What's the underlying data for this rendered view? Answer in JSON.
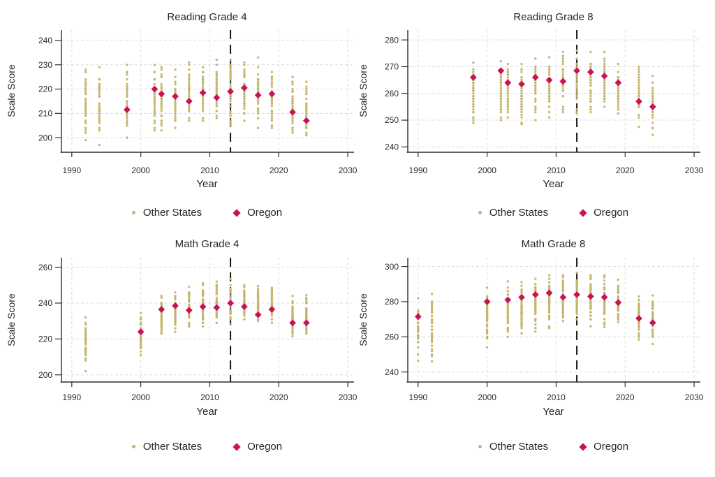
{
  "legend": {
    "other_states": "Other States",
    "oregon": "Oregon"
  },
  "colors": {
    "other_states": "#c4b56c",
    "oregon": "#cb1256",
    "reference_line": "#111111",
    "grid": "#dcdcdc",
    "axis": "#2e2e2e",
    "text": "#2b2b2b"
  },
  "chart_data": [
    {
      "type": "scatter",
      "title": "Reading Grade 4",
      "xlabel": "Year",
      "ylabel": "Scale Score",
      "xlim": [
        1988.5,
        2030.7
      ],
      "xticks": [
        1990,
        2000,
        2010,
        2020,
        2030
      ],
      "ylim": [
        194,
        244.3
      ],
      "yticks": [
        200,
        210,
        220,
        230,
        240
      ],
      "reference_line_x": 2013,
      "grid": true,
      "legend_position": "bottom",
      "oregon": {
        "years": [
          1998,
          2002,
          2003,
          2005,
          2007,
          2009,
          2011,
          2013,
          2015,
          2017,
          2019,
          2022,
          2024
        ],
        "values": [
          211.5,
          220,
          218,
          217,
          215,
          218.5,
          216.5,
          219,
          220.5,
          217.5,
          218,
          210.5,
          207
        ]
      },
      "other_states": {
        "years": [
          1992,
          1994,
          1998,
          2002,
          2003,
          2005,
          2007,
          2009,
          2011,
          2013,
          2015,
          2017,
          2019,
          2022,
          2024
        ],
        "min": [
          199,
          197,
          200,
          203,
          203,
          204,
          207,
          207,
          208,
          205,
          207,
          204,
          204,
          202,
          201
        ],
        "max": [
          228,
          229,
          230,
          230,
          229,
          228,
          231,
          229,
          232,
          232,
          231,
          233,
          227,
          225,
          223
        ]
      }
    },
    {
      "type": "scatter",
      "title": "Reading Grade 8",
      "xlabel": "Year",
      "ylabel": "Scale Score",
      "xlim": [
        1988.5,
        2030.7
      ],
      "xticks": [
        1990,
        2000,
        2010,
        2020,
        2030
      ],
      "ylim": [
        238,
        283.7
      ],
      "yticks": [
        240,
        250,
        260,
        270,
        280
      ],
      "reference_line_x": 2013,
      "grid": true,
      "legend_position": "bottom",
      "oregon": {
        "years": [
          1998,
          2002,
          2003,
          2005,
          2007,
          2009,
          2011,
          2013,
          2015,
          2017,
          2019,
          2022,
          2024
        ],
        "values": [
          266,
          268.5,
          264,
          263.5,
          266,
          265,
          264.5,
          268.5,
          268,
          266.5,
          264,
          257,
          255
        ]
      },
      "other_states": {
        "years": [
          1998,
          2002,
          2003,
          2005,
          2007,
          2009,
          2011,
          2013,
          2015,
          2017,
          2019,
          2022,
          2024
        ],
        "min": [
          249,
          250,
          251,
          248.5,
          250,
          251,
          253,
          252.5,
          253,
          255,
          252.5,
          247.5,
          244.5
        ],
        "max": [
          271.5,
          272,
          271,
          271,
          273,
          273.5,
          275.5,
          276,
          275.5,
          275.5,
          271,
          270,
          266.5
        ]
      }
    },
    {
      "type": "scatter",
      "title": "Math Grade 4",
      "xlabel": "Year",
      "ylabel": "Scale Score",
      "xlim": [
        1988.5,
        2030.7
      ],
      "xticks": [
        1990,
        2000,
        2010,
        2020,
        2030
      ],
      "ylim": [
        196,
        265.3
      ],
      "yticks": [
        200,
        220,
        240,
        260
      ],
      "reference_line_x": 2013,
      "grid": true,
      "legend_position": "bottom",
      "oregon": {
        "years": [
          2000,
          2003,
          2005,
          2007,
          2009,
          2011,
          2013,
          2015,
          2017,
          2019,
          2022,
          2024
        ],
        "values": [
          224,
          236.5,
          238.5,
          236,
          238,
          237.5,
          240,
          238,
          233.5,
          236.5,
          229,
          229
        ]
      },
      "other_states": {
        "years": [
          1992,
          2000,
          2003,
          2005,
          2007,
          2009,
          2011,
          2013,
          2015,
          2017,
          2019,
          2022,
          2024
        ],
        "min": [
          202,
          211,
          223,
          224,
          227,
          227,
          229,
          228,
          231,
          230,
          229,
          221.5,
          223
        ],
        "max": [
          232,
          234.5,
          244,
          246,
          249,
          251,
          252,
          253.5,
          250,
          249.5,
          248.5,
          244,
          244.5
        ]
      }
    },
    {
      "type": "scatter",
      "title": "Math Grade 8",
      "xlabel": "Year",
      "ylabel": "Scale Score",
      "xlim": [
        1988.5,
        2030.7
      ],
      "xticks": [
        1990,
        2000,
        2010,
        2020,
        2030
      ],
      "ylim": [
        234.3,
        305
      ],
      "yticks": [
        240,
        260,
        280,
        300
      ],
      "reference_line_x": 2013,
      "grid": true,
      "legend_position": "bottom",
      "oregon": {
        "years": [
          1990,
          2000,
          2003,
          2005,
          2007,
          2009,
          2011,
          2013,
          2015,
          2017,
          2019,
          2022,
          2024
        ],
        "values": [
          271.5,
          280,
          281,
          282.5,
          284,
          285,
          282.5,
          284,
          283,
          282.5,
          279.5,
          270.5,
          268
        ]
      },
      "other_states": {
        "years": [
          1990,
          1992,
          2000,
          2003,
          2005,
          2007,
          2009,
          2011,
          2013,
          2015,
          2017,
          2019,
          2022,
          2024
        ],
        "min": [
          246.5,
          246,
          254,
          260,
          262,
          263,
          265,
          269,
          270,
          266,
          265.5,
          268.5,
          258.5,
          256
        ],
        "max": [
          282,
          284.5,
          288,
          291.5,
          291,
          293,
          295,
          295,
          296.5,
          295,
          295,
          292.5,
          283,
          283.5
        ]
      }
    }
  ]
}
